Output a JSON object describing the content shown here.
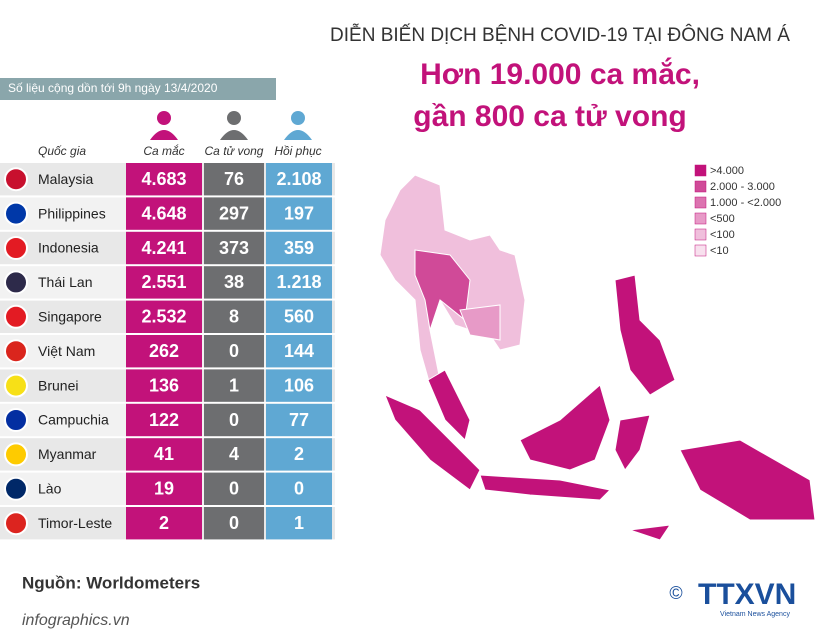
{
  "header": {
    "title": "DIỄN BIẾN DỊCH BỆNH COVID-19 TẠI ĐÔNG NAM Á",
    "headline": [
      "Hơn 19.000 ca mắc,",
      "gần 800 ca tử vong"
    ],
    "note": "Số liệu cộng dồn tới 9h ngày 13/4/2020"
  },
  "table": {
    "headers": [
      "Quốc gia",
      "Ca mắc",
      "Ca tử vong",
      "Hồi phục"
    ],
    "rows": [
      [
        "Malaysia",
        "4.683",
        "76",
        "2.108"
      ],
      [
        "Philippines",
        "4.648",
        "297",
        "197"
      ],
      [
        "Indonesia",
        "4.241",
        "373",
        "359"
      ],
      [
        "Thái Lan",
        "2.551",
        "38",
        "1.218"
      ],
      [
        "Singapore",
        "2.532",
        "8",
        "560"
      ],
      [
        "Việt Nam",
        "262",
        "0",
        "144"
      ],
      [
        "Brunei",
        "136",
        "1",
        "106"
      ],
      [
        "Campuchia",
        "122",
        "0",
        "77"
      ],
      [
        "Myanmar",
        "41",
        "4",
        "2"
      ],
      [
        "Lào",
        "19",
        "0",
        "0"
      ],
      [
        "Timor-Leste",
        "2",
        "0",
        "1"
      ]
    ]
  },
  "legend": {
    "items": [
      {
        "label": ">4.000",
        "color": "#c2127a"
      },
      {
        "label": "2.000 - 3.000",
        "color": "#d04a98"
      },
      {
        "label": "1.000 - <2.000",
        "color": "#dc73b0"
      },
      {
        "label": "<500",
        "color": "#e79ac7"
      },
      {
        "label": "<100",
        "color": "#f0bfdc"
      },
      {
        "label": "<10",
        "color": "#f8e0ee"
      }
    ]
  },
  "footer": {
    "source": "Nguồn: Worldometers",
    "site": "infographics.vn",
    "logo": "TTXVN",
    "agency": "Vietnam News Agency"
  }
}
